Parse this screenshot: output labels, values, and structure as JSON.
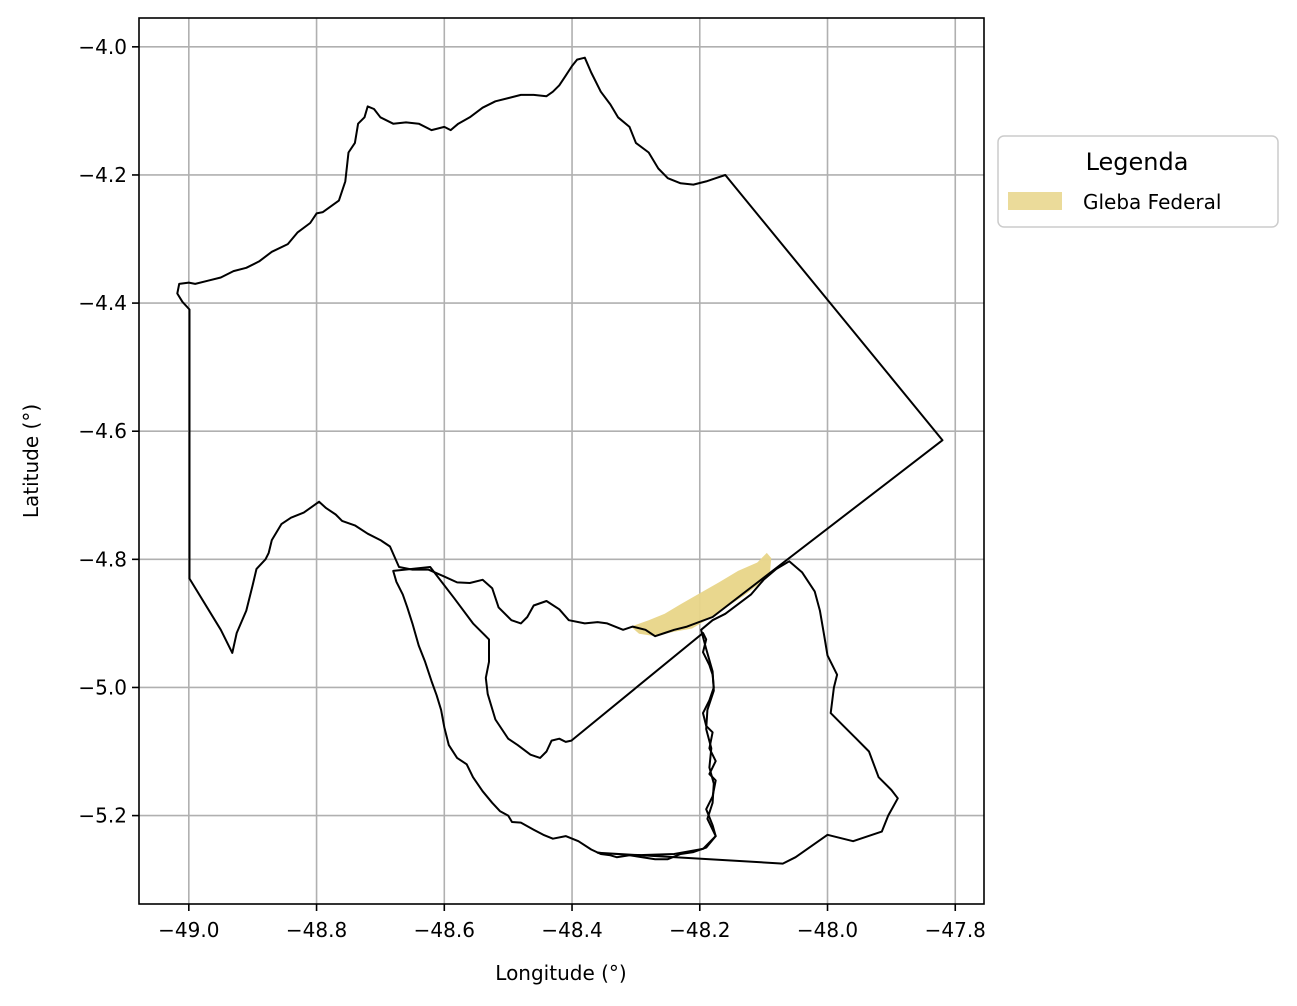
{
  "chart_data": {
    "type": "map",
    "xlabel": "Longitude (°)",
    "ylabel": "Latitude (°)",
    "xlim": [
      -49.078,
      -47.755
    ],
    "ylim": [
      -5.338,
      -3.955
    ],
    "xticks": [
      -49.0,
      -48.8,
      -48.6,
      -48.4,
      -48.2,
      -48.0,
      -47.8
    ],
    "xtick_labels": [
      "−49.0",
      "−48.8",
      "−48.6",
      "−48.4",
      "−48.2",
      "−48.0",
      "−47.8"
    ],
    "yticks": [
      -4.0,
      -4.2,
      -4.4,
      -4.6,
      -4.8,
      -5.0,
      -5.2
    ],
    "ytick_labels": [
      "−4.0",
      "−4.2",
      "−4.4",
      "−4.6",
      "−4.8",
      "−5.0",
      "−5.2"
    ],
    "grid": true,
    "legend": {
      "title": "Legenda",
      "placement": "outside right",
      "entries": [
        {
          "label": "Gleba Federal",
          "color": "#e8d588"
        }
      ]
    },
    "colors": {
      "outline": "#000000",
      "gleba_fill": "#e8d588",
      "grid": "#b0b0b0"
    },
    "boundaries": [
      {
        "name": "municipality-north",
        "points": [
          [
            -48.999,
            -4.41
          ],
          [
            -48.999,
            -4.83
          ],
          [
            -48.95,
            -4.91
          ],
          [
            -48.932,
            -4.946
          ],
          [
            -48.925,
            -4.915
          ],
          [
            -48.91,
            -4.88
          ],
          [
            -48.9,
            -4.84
          ],
          [
            -48.894,
            -4.815
          ],
          [
            -48.88,
            -4.8
          ],
          [
            -48.875,
            -4.79
          ],
          [
            -48.87,
            -4.77
          ],
          [
            -48.855,
            -4.745
          ],
          [
            -48.84,
            -4.735
          ],
          [
            -48.82,
            -4.727
          ],
          [
            -48.796,
            -4.71
          ],
          [
            -48.785,
            -4.72
          ],
          [
            -48.77,
            -4.73
          ],
          [
            -48.76,
            -4.74
          ],
          [
            -48.74,
            -4.747
          ],
          [
            -48.72,
            -4.76
          ],
          [
            -48.7,
            -4.77
          ],
          [
            -48.685,
            -4.78
          ],
          [
            -48.671,
            -4.812
          ],
          [
            -48.65,
            -4.816
          ],
          [
            -48.625,
            -4.816
          ],
          [
            -48.6,
            -4.827
          ],
          [
            -48.58,
            -4.836
          ],
          [
            -48.56,
            -4.837
          ],
          [
            -48.54,
            -4.832
          ],
          [
            -48.525,
            -4.845
          ],
          [
            -48.515,
            -4.875
          ],
          [
            -48.495,
            -4.895
          ],
          [
            -48.48,
            -4.9
          ],
          [
            -48.47,
            -4.89
          ],
          [
            -48.46,
            -4.872
          ],
          [
            -48.44,
            -4.865
          ],
          [
            -48.42,
            -4.878
          ],
          [
            -48.405,
            -4.895
          ],
          [
            -48.38,
            -4.9
          ],
          [
            -48.36,
            -4.898
          ],
          [
            -48.345,
            -4.9
          ],
          [
            -48.32,
            -4.91
          ],
          [
            -48.305,
            -4.905
          ],
          [
            -48.285,
            -4.91
          ],
          [
            -48.27,
            -4.92
          ],
          [
            -48.255,
            -4.915
          ],
          [
            -48.24,
            -4.91
          ],
          [
            -48.22,
            -4.905
          ],
          [
            -48.18,
            -4.89
          ],
          [
            -47.82,
            -4.614
          ],
          [
            -48.16,
            -4.2
          ],
          [
            -48.175,
            -4.205
          ],
          [
            -48.19,
            -4.21
          ],
          [
            -48.21,
            -4.215
          ],
          [
            -48.23,
            -4.213
          ],
          [
            -48.25,
            -4.205
          ],
          [
            -48.265,
            -4.19
          ],
          [
            -48.28,
            -4.165
          ],
          [
            -48.3,
            -4.15
          ],
          [
            -48.31,
            -4.125
          ],
          [
            -48.328,
            -4.11
          ],
          [
            -48.34,
            -4.09
          ],
          [
            -48.355,
            -4.07
          ],
          [
            -48.37,
            -4.04
          ],
          [
            -48.38,
            -4.017
          ],
          [
            -48.392,
            -4.02
          ],
          [
            -48.4,
            -4.03
          ],
          [
            -48.41,
            -4.045
          ],
          [
            -48.42,
            -4.06
          ],
          [
            -48.43,
            -4.07
          ],
          [
            -48.44,
            -4.077
          ],
          [
            -48.46,
            -4.075
          ],
          [
            -48.48,
            -4.075
          ],
          [
            -48.5,
            -4.08
          ],
          [
            -48.52,
            -4.085
          ],
          [
            -48.54,
            -4.095
          ],
          [
            -48.56,
            -4.11
          ],
          [
            -48.578,
            -4.12
          ],
          [
            -48.59,
            -4.13
          ],
          [
            -48.6,
            -4.125
          ],
          [
            -48.62,
            -4.13
          ],
          [
            -48.64,
            -4.12
          ],
          [
            -48.66,
            -4.118
          ],
          [
            -48.68,
            -4.12
          ],
          [
            -48.7,
            -4.11
          ],
          [
            -48.71,
            -4.097
          ],
          [
            -48.72,
            -4.093
          ],
          [
            -48.725,
            -4.11
          ],
          [
            -48.735,
            -4.12
          ],
          [
            -48.74,
            -4.15
          ],
          [
            -48.75,
            -4.165
          ],
          [
            -48.755,
            -4.21
          ],
          [
            -48.765,
            -4.24
          ],
          [
            -48.79,
            -4.258
          ],
          [
            -48.8,
            -4.26
          ],
          [
            -48.81,
            -4.275
          ],
          [
            -48.83,
            -4.29
          ],
          [
            -48.845,
            -4.308
          ],
          [
            -48.87,
            -4.32
          ],
          [
            -48.89,
            -4.335
          ],
          [
            -48.91,
            -4.345
          ],
          [
            -48.93,
            -4.35
          ],
          [
            -48.95,
            -4.36
          ],
          [
            -48.97,
            -4.365
          ],
          [
            -48.99,
            -4.37
          ],
          [
            -49.0,
            -4.368
          ],
          [
            -49.015,
            -4.37
          ],
          [
            -49.018,
            -4.385
          ],
          [
            -49.01,
            -4.398
          ],
          [
            -48.999,
            -4.41
          ]
        ]
      },
      {
        "name": "municipality-west-lobe",
        "points": [
          [
            -48.622,
            -4.812
          ],
          [
            -48.585,
            -4.86
          ],
          [
            -48.555,
            -4.9
          ],
          [
            -48.53,
            -4.925
          ],
          [
            -48.53,
            -4.96
          ],
          [
            -48.535,
            -4.985
          ],
          [
            -48.532,
            -5.01
          ],
          [
            -48.52,
            -5.05
          ],
          [
            -48.5,
            -5.08
          ],
          [
            -48.485,
            -5.09
          ],
          [
            -48.465,
            -5.105
          ],
          [
            -48.45,
            -5.11
          ],
          [
            -48.44,
            -5.1
          ],
          [
            -48.432,
            -5.083
          ],
          [
            -48.42,
            -5.08
          ],
          [
            -48.41,
            -5.085
          ],
          [
            -48.401,
            -5.083
          ],
          [
            -48.195,
            -4.915
          ],
          [
            -48.19,
            -4.925
          ],
          [
            -48.195,
            -4.945
          ],
          [
            -48.185,
            -4.965
          ],
          [
            -48.18,
            -4.98
          ],
          [
            -48.178,
            -5.0
          ],
          [
            -48.185,
            -5.02
          ],
          [
            -48.195,
            -5.04
          ],
          [
            -48.19,
            -5.06
          ],
          [
            -48.18,
            -5.07
          ],
          [
            -48.185,
            -5.095
          ],
          [
            -48.175,
            -5.115
          ],
          [
            -48.185,
            -5.135
          ],
          [
            -48.175,
            -5.145
          ],
          [
            -48.18,
            -5.17
          ],
          [
            -48.19,
            -5.19
          ],
          [
            -48.18,
            -5.215
          ],
          [
            -48.175,
            -5.232
          ],
          [
            -48.19,
            -5.25
          ],
          [
            -48.21,
            -5.257
          ],
          [
            -48.23,
            -5.26
          ],
          [
            -48.25,
            -5.268
          ],
          [
            -48.27,
            -5.268
          ],
          [
            -48.29,
            -5.265
          ],
          [
            -48.31,
            -5.262
          ],
          [
            -48.33,
            -5.265
          ],
          [
            -48.34,
            -5.262
          ],
          [
            -48.355,
            -5.26
          ],
          [
            -48.37,
            -5.253
          ],
          [
            -48.39,
            -5.24
          ],
          [
            -48.41,
            -5.232
          ],
          [
            -48.43,
            -5.236
          ],
          [
            -48.445,
            -5.23
          ],
          [
            -48.46,
            -5.222
          ],
          [
            -48.48,
            -5.211
          ],
          [
            -48.494,
            -5.21
          ],
          [
            -48.5,
            -5.2
          ],
          [
            -48.513,
            -5.193
          ],
          [
            -48.525,
            -5.18
          ],
          [
            -48.54,
            -5.162
          ],
          [
            -48.555,
            -5.14
          ],
          [
            -48.565,
            -5.12
          ],
          [
            -48.58,
            -5.11
          ],
          [
            -48.593,
            -5.09
          ],
          [
            -48.6,
            -5.062
          ],
          [
            -48.605,
            -5.035
          ],
          [
            -48.612,
            -5.012
          ],
          [
            -48.62,
            -4.99
          ],
          [
            -48.63,
            -4.96
          ],
          [
            -48.64,
            -4.935
          ],
          [
            -48.65,
            -4.9
          ],
          [
            -48.658,
            -4.875
          ],
          [
            -48.665,
            -4.855
          ],
          [
            -48.675,
            -4.835
          ],
          [
            -48.68,
            -4.818
          ],
          [
            -48.65,
            -4.815
          ],
          [
            -48.622,
            -4.812
          ]
        ]
      },
      {
        "name": "municipality-south",
        "points": [
          [
            -48.198,
            -4.91
          ],
          [
            -48.19,
            -4.94
          ],
          [
            -48.18,
            -4.975
          ],
          [
            -48.178,
            -5.005
          ],
          [
            -48.188,
            -5.035
          ],
          [
            -48.19,
            -5.065
          ],
          [
            -48.182,
            -5.095
          ],
          [
            -48.185,
            -5.125
          ],
          [
            -48.178,
            -5.15
          ],
          [
            -48.18,
            -5.18
          ],
          [
            -48.188,
            -5.205
          ],
          [
            -48.175,
            -5.232
          ],
          [
            -48.195,
            -5.252
          ],
          [
            -48.24,
            -5.26
          ],
          [
            -48.3,
            -5.262
          ],
          [
            -48.36,
            -5.258
          ],
          [
            -48.07,
            -5.275
          ],
          [
            -48.05,
            -5.265
          ],
          [
            -48.0,
            -5.23
          ],
          [
            -47.96,
            -5.24
          ],
          [
            -47.915,
            -5.225
          ],
          [
            -47.905,
            -5.2
          ],
          [
            -47.89,
            -5.173
          ],
          [
            -47.9,
            -5.16
          ],
          [
            -47.92,
            -5.14
          ],
          [
            -47.935,
            -5.1
          ],
          [
            -47.955,
            -5.08
          ],
          [
            -47.975,
            -5.06
          ],
          [
            -47.995,
            -5.04
          ],
          [
            -47.99,
            -5.0
          ],
          [
            -47.985,
            -4.98
          ],
          [
            -48.0,
            -4.95
          ],
          [
            -48.005,
            -4.92
          ],
          [
            -48.012,
            -4.88
          ],
          [
            -48.02,
            -4.85
          ],
          [
            -48.04,
            -4.82
          ],
          [
            -48.06,
            -4.803
          ],
          [
            -48.08,
            -4.815
          ],
          [
            -48.1,
            -4.832
          ],
          [
            -48.12,
            -4.855
          ],
          [
            -48.14,
            -4.87
          ],
          [
            -48.16,
            -4.885
          ],
          [
            -48.18,
            -4.895
          ],
          [
            -48.198,
            -4.91
          ]
        ]
      }
    ],
    "gleba_federal": [
      [
        -48.308,
        -4.905
      ],
      [
        -48.28,
        -4.895
      ],
      [
        -48.255,
        -4.885
      ],
      [
        -48.23,
        -4.87
      ],
      [
        -48.2,
        -4.853
      ],
      [
        -48.17,
        -4.836
      ],
      [
        -48.14,
        -4.818
      ],
      [
        -48.11,
        -4.805
      ],
      [
        -48.095,
        -4.79
      ],
      [
        -48.088,
        -4.798
      ],
      [
        -48.09,
        -4.82
      ],
      [
        -48.1,
        -4.833
      ],
      [
        -48.13,
        -4.856
      ],
      [
        -48.16,
        -4.876
      ],
      [
        -48.19,
        -4.895
      ],
      [
        -48.212,
        -4.908
      ],
      [
        -48.24,
        -4.913
      ],
      [
        -48.27,
        -4.92
      ],
      [
        -48.295,
        -4.916
      ],
      [
        -48.308,
        -4.905
      ]
    ]
  }
}
